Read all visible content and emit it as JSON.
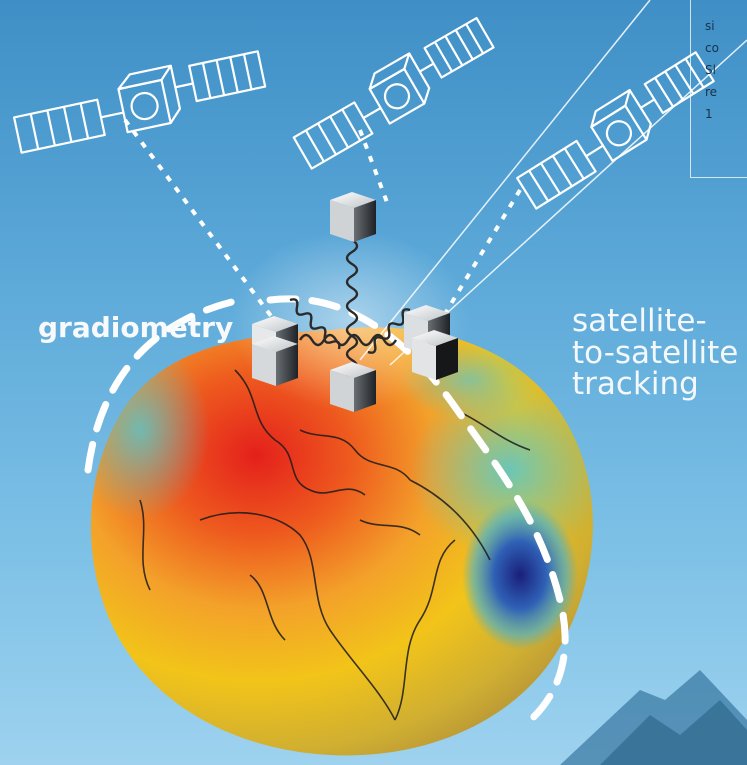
{
  "labels": {
    "gradiometry": "gradiometry",
    "sst_line1": "satellite-",
    "sst_line2": "to-satellite",
    "sst_line3": "tracking"
  },
  "infobox_fragments": [
    "si",
    "co",
    "Sl",
    "re",
    "1"
  ],
  "colors": {
    "sky_top": "#3f8fc6",
    "sky_bottom": "#9ed2ef",
    "geoid_high": "#e4201c",
    "geoid_mid": "#f2c419",
    "geoid_low": "#1a1f7a",
    "orbit_dash": "#ffffff"
  },
  "icons": [
    "satellite-icon",
    "accelerometer-cube-icon",
    "spring-icon",
    "earth-geoid-icon",
    "mountain-icon"
  ]
}
